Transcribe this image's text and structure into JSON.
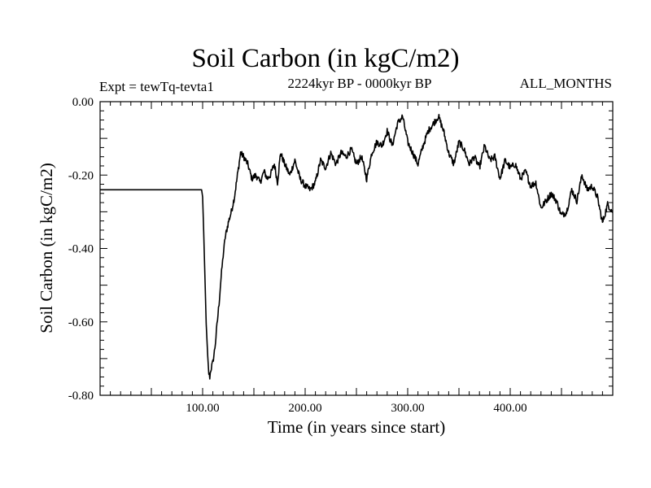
{
  "chart_data": {
    "type": "line",
    "title": "Soil Carbon (in kgC/m2)",
    "subtitle": "2224kyr BP - 0000kyr BP",
    "experiment": "Expt = tewTq-tevta1",
    "months": "ALL_MONTHS",
    "xlabel": "Time (in years since start)",
    "ylabel": "Soil Carbon (in kgC/m2)",
    "xlim": [
      0,
      500
    ],
    "ylim": [
      -0.8,
      0.0
    ],
    "x_ticks": [
      100,
      200,
      300,
      400
    ],
    "x_tick_labels": [
      "100.00",
      "200.00",
      "300.00",
      "400.00"
    ],
    "y_ticks": [
      0.0,
      -0.2,
      -0.4,
      -0.6,
      -0.8
    ],
    "y_tick_labels": [
      "0.00",
      "-0.20",
      "-0.40",
      "-0.60",
      "-0.80"
    ],
    "grid": false,
    "series": [
      {
        "name": "Soil Carbon",
        "color": "#000000",
        "x": [
          0,
          99,
          100,
          101,
          102,
          103,
          104,
          105,
          106,
          107,
          108,
          110,
          112,
          114,
          116,
          118,
          120,
          122,
          125,
          128,
          131,
          134,
          137,
          140,
          144,
          148,
          152,
          156,
          160,
          163,
          166,
          170,
          173,
          176,
          180,
          185,
          190,
          195,
          200,
          205,
          210,
          215,
          220,
          225,
          230,
          235,
          240,
          245,
          250,
          255,
          260,
          265,
          270,
          275,
          280,
          285,
          290,
          295,
          300,
          305,
          310,
          315,
          320,
          325,
          330,
          335,
          340,
          345,
          350,
          355,
          360,
          365,
          370,
          375,
          380,
          385,
          390,
          395,
          400,
          405,
          410,
          415,
          420,
          425,
          430,
          435,
          440,
          445,
          450,
          455,
          460,
          465,
          470,
          475,
          480,
          485,
          490,
          495,
          500
        ],
        "y": [
          -0.24,
          -0.24,
          -0.26,
          -0.35,
          -0.46,
          -0.56,
          -0.64,
          -0.7,
          -0.74,
          -0.75,
          -0.73,
          -0.71,
          -0.67,
          -0.61,
          -0.55,
          -0.48,
          -0.42,
          -0.37,
          -0.33,
          -0.3,
          -0.26,
          -0.2,
          -0.14,
          -0.15,
          -0.17,
          -0.21,
          -0.2,
          -0.22,
          -0.19,
          -0.21,
          -0.2,
          -0.17,
          -0.22,
          -0.14,
          -0.17,
          -0.2,
          -0.16,
          -0.21,
          -0.23,
          -0.24,
          -0.22,
          -0.16,
          -0.18,
          -0.14,
          -0.17,
          -0.14,
          -0.15,
          -0.13,
          -0.17,
          -0.15,
          -0.21,
          -0.14,
          -0.11,
          -0.12,
          -0.08,
          -0.12,
          -0.06,
          -0.04,
          -0.11,
          -0.14,
          -0.17,
          -0.12,
          -0.08,
          -0.06,
          -0.04,
          -0.08,
          -0.14,
          -0.17,
          -0.11,
          -0.13,
          -0.17,
          -0.15,
          -0.18,
          -0.12,
          -0.16,
          -0.15,
          -0.21,
          -0.16,
          -0.18,
          -0.17,
          -0.21,
          -0.19,
          -0.23,
          -0.22,
          -0.29,
          -0.27,
          -0.25,
          -0.27,
          -0.31,
          -0.3,
          -0.24,
          -0.27,
          -0.2,
          -0.24,
          -0.23,
          -0.26,
          -0.33,
          -0.28,
          -0.3
        ]
      }
    ]
  }
}
